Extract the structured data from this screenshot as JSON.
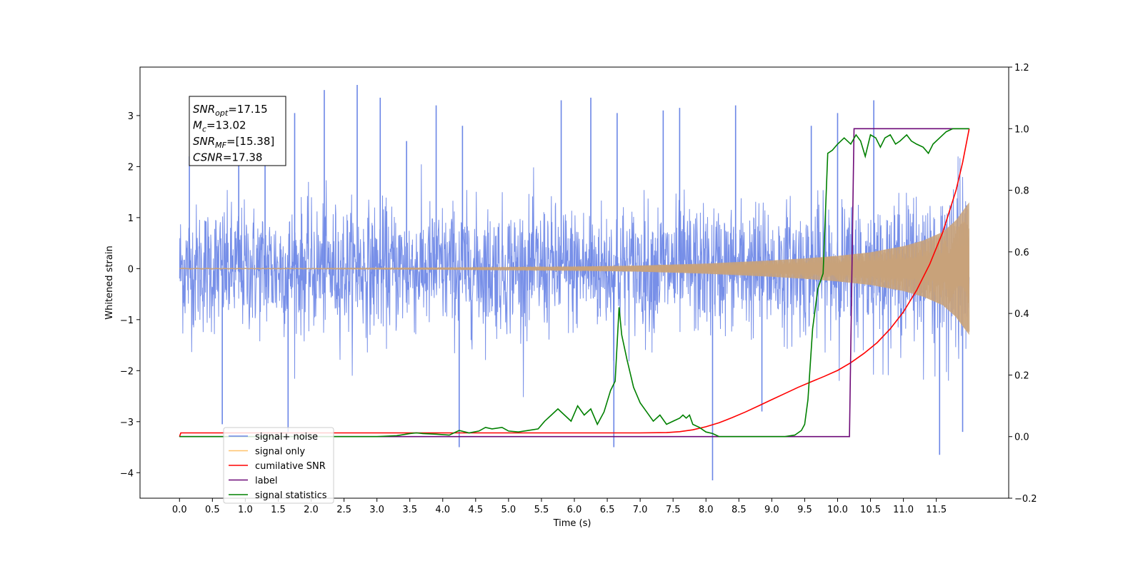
{
  "chart_data": {
    "type": "line",
    "xlabel": "Time (s)",
    "ylabel": "Whitened strain",
    "xlim": [
      -0.6,
      12.6
    ],
    "ylim_left": [
      -4.5,
      3.95
    ],
    "ylim_right": [
      -0.2,
      1.2
    ],
    "x_ticks": [
      "0.0",
      "0.5",
      "1.0",
      "1.5",
      "2.0",
      "2.5",
      "3.0",
      "3.5",
      "4.0",
      "4.5",
      "5.0",
      "5.5",
      "6.0",
      "6.5",
      "7.0",
      "7.5",
      "8.0",
      "8.5",
      "9.0",
      "9.5",
      "10.0",
      "10.5",
      "11.0",
      "11.5"
    ],
    "y_ticks_left": [
      "−4",
      "−3",
      "−2",
      "−1",
      "0",
      "1",
      "2",
      "3"
    ],
    "y_ticks_right": [
      "−0.2",
      "0.0",
      "0.2",
      "0.4",
      "0.6",
      "0.8",
      "1.0",
      "1.2"
    ],
    "noise_envelope": {
      "t": [
        0,
        12
      ],
      "upper_typical": 1.2,
      "lower_typical": -1.5,
      "spikes": [
        {
          "t": 0.15,
          "v": 2.2
        },
        {
          "t": 0.9,
          "v": 2.6
        },
        {
          "t": 1.3,
          "v": 2.2
        },
        {
          "t": 1.75,
          "v": 3.05
        },
        {
          "t": 2.2,
          "v": 3.5
        },
        {
          "t": 2.7,
          "v": 3.6
        },
        {
          "t": 3.05,
          "v": 3.35
        },
        {
          "t": 3.45,
          "v": 2.5
        },
        {
          "t": 3.9,
          "v": 3.2
        },
        {
          "t": 4.3,
          "v": 2.8
        },
        {
          "t": 5.8,
          "v": 3.3
        },
        {
          "t": 6.25,
          "v": 3.35
        },
        {
          "t": 6.65,
          "v": 3.05
        },
        {
          "t": 7.35,
          "v": 3.1
        },
        {
          "t": 7.6,
          "v": 3.15
        },
        {
          "t": 8.45,
          "v": 3.2
        },
        {
          "t": 9.6,
          "v": 2.8
        },
        {
          "t": 10.0,
          "v": 3.05
        },
        {
          "t": 10.55,
          "v": 3.3
        },
        {
          "t": 0.65,
          "v": -3.05
        },
        {
          "t": 1.65,
          "v": -3.2
        },
        {
          "t": 4.25,
          "v": -3.5
        },
        {
          "t": 6.6,
          "v": -3.5
        },
        {
          "t": 8.1,
          "v": -4.15
        },
        {
          "t": 8.85,
          "v": -2.8
        },
        {
          "t": 11.55,
          "v": -3.65
        },
        {
          "t": 11.9,
          "v": -3.2
        }
      ]
    },
    "signal_envelope": {
      "t": [
        0,
        1,
        2,
        3,
        4,
        5,
        6,
        7,
        7.5,
        8,
        8.5,
        9,
        9.5,
        10,
        10.5,
        11,
        11.3,
        11.6,
        11.8,
        12
      ],
      "amp": [
        0.01,
        0.01,
        0.01,
        0.015,
        0.02,
        0.03,
        0.04,
        0.06,
        0.08,
        0.1,
        0.13,
        0.16,
        0.2,
        0.25,
        0.32,
        0.44,
        0.55,
        0.72,
        0.95,
        1.3
      ]
    },
    "series": [
      {
        "name": "signal+ noise",
        "axis": "left",
        "color": "#6b86e6"
      },
      {
        "name": "signal only",
        "axis": "left",
        "color": "#c8a27a"
      },
      {
        "name": "cumilative SNR",
        "axis": "right",
        "color": "#ff0000",
        "x": [
          0,
          0.02,
          0.5,
          7.0,
          7.4,
          7.6,
          7.8,
          8.0,
          8.2,
          8.4,
          8.6,
          8.8,
          9.0,
          9.2,
          9.4,
          9.6,
          9.8,
          10.0,
          10.2,
          10.4,
          10.6,
          10.8,
          11.0,
          11.2,
          11.4,
          11.6,
          11.8,
          11.9,
          12.0
        ],
        "y": [
          0.0,
          0.012,
          0.012,
          0.012,
          0.013,
          0.016,
          0.022,
          0.032,
          0.045,
          0.062,
          0.08,
          0.1,
          0.12,
          0.14,
          0.16,
          0.178,
          0.196,
          0.215,
          0.24,
          0.27,
          0.305,
          0.35,
          0.405,
          0.475,
          0.56,
          0.665,
          0.8,
          0.89,
          1.0
        ]
      },
      {
        "name": "label",
        "axis": "right",
        "color": "#6e0a78",
        "x": [
          0,
          10.18,
          10.25,
          12.0
        ],
        "y": [
          0.0,
          0.0,
          1.0,
          1.0
        ]
      },
      {
        "name": "signal statistics",
        "axis": "right",
        "color": "#008000",
        "x": [
          0,
          3.0,
          3.3,
          3.5,
          3.6,
          3.7,
          3.9,
          4.1,
          4.25,
          4.4,
          4.55,
          4.65,
          4.75,
          4.9,
          5.0,
          5.15,
          5.3,
          5.45,
          5.55,
          5.65,
          5.75,
          5.85,
          5.95,
          6.05,
          6.15,
          6.25,
          6.35,
          6.45,
          6.55,
          6.62,
          6.68,
          6.72,
          6.8,
          6.9,
          7.0,
          7.1,
          7.2,
          7.3,
          7.4,
          7.5,
          7.6,
          7.65,
          7.7,
          7.75,
          7.8,
          7.9,
          8.0,
          8.1,
          8.2,
          8.3,
          8.8,
          9.2,
          9.35,
          9.45,
          9.5,
          9.55,
          9.62,
          9.7,
          9.78,
          9.85,
          9.92,
          10.0,
          10.1,
          10.2,
          10.28,
          10.35,
          10.42,
          10.5,
          10.58,
          10.65,
          10.72,
          10.8,
          10.88,
          10.95,
          11.05,
          11.12,
          11.2,
          11.3,
          11.38,
          11.45,
          11.55,
          11.65,
          11.75,
          11.9,
          12.0
        ],
        "y": [
          0.0,
          0.0,
          0.003,
          0.01,
          0.012,
          0.01,
          0.008,
          0.005,
          0.02,
          0.012,
          0.018,
          0.03,
          0.025,
          0.03,
          0.018,
          0.015,
          0.02,
          0.025,
          0.05,
          0.07,
          0.09,
          0.07,
          0.05,
          0.1,
          0.07,
          0.09,
          0.04,
          0.08,
          0.15,
          0.18,
          0.42,
          0.33,
          0.25,
          0.16,
          0.11,
          0.08,
          0.05,
          0.07,
          0.04,
          0.05,
          0.06,
          0.07,
          0.06,
          0.07,
          0.04,
          0.03,
          0.015,
          0.01,
          0.0,
          0.0,
          0.0,
          0.0,
          0.005,
          0.02,
          0.04,
          0.12,
          0.35,
          0.48,
          0.53,
          0.92,
          0.93,
          0.95,
          0.97,
          0.95,
          0.98,
          0.96,
          0.91,
          0.98,
          0.97,
          0.94,
          0.97,
          0.98,
          0.95,
          0.96,
          0.98,
          0.96,
          0.95,
          0.94,
          0.92,
          0.95,
          0.97,
          0.99,
          1.0,
          1.0,
          1.0
        ]
      }
    ],
    "legend": {
      "position": "bottom-left",
      "entries": [
        "signal+ noise",
        "signal only",
        "cumilative SNR",
        "label",
        "signal statistics"
      ],
      "ghost_entries": [
        "signal only",
        "signal statistics"
      ]
    },
    "annotation": {
      "lines": [
        {
          "main": "SNR",
          "sub": "opt",
          "value": "=17.15"
        },
        {
          "main": "M",
          "sub": "c",
          "value": "=13.02"
        },
        {
          "main": "SNR",
          "sub": "MF",
          "value": "=[15.38]"
        },
        {
          "main": "CSNR",
          "sub": "",
          "value": "=17.38"
        }
      ]
    }
  }
}
